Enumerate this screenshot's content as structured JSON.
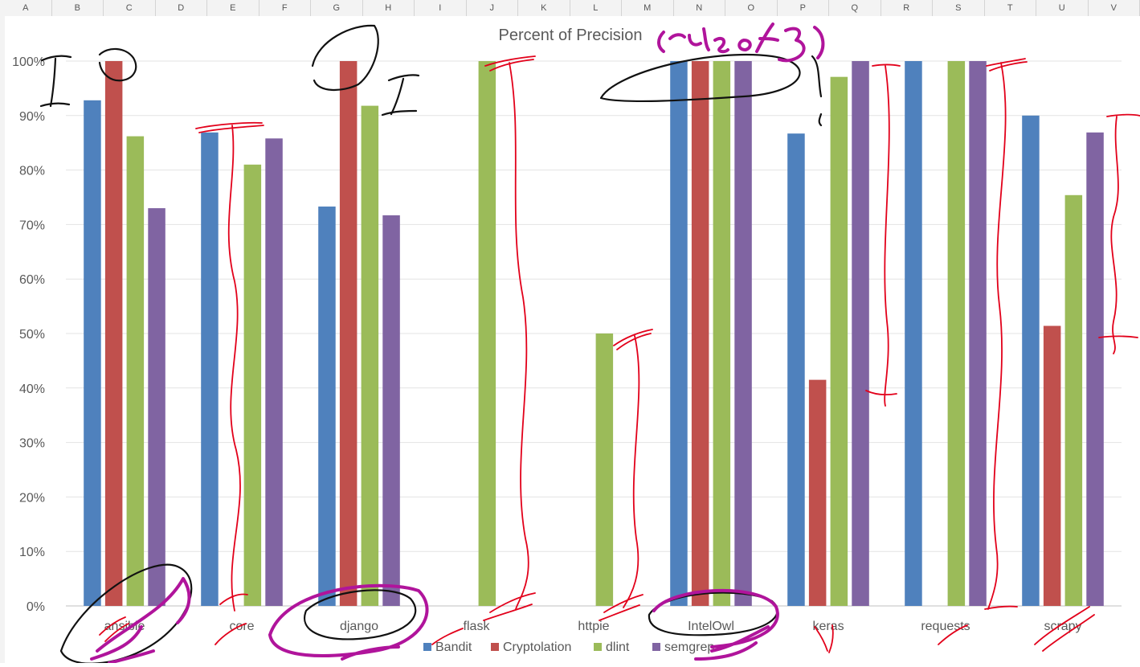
{
  "sheet": {
    "columns": [
      "A",
      "B",
      "C",
      "D",
      "E",
      "F",
      "G",
      "H",
      "I",
      "J",
      "K",
      "L",
      "M",
      "N",
      "O",
      "P",
      "Q",
      "R",
      "S",
      "T",
      "U",
      "V"
    ]
  },
  "chart_data": {
    "type": "bar",
    "title": "Percent of Precision",
    "categories": [
      "ansible",
      "core",
      "django",
      "flask",
      "httpie",
      "IntelOwl",
      "keras",
      "requests",
      "scrapy"
    ],
    "series": [
      {
        "name": "Bandit",
        "color": "#4F81BD",
        "values": [
          92.8,
          86.9,
          73.3,
          null,
          null,
          100,
          86.7,
          100,
          90
        ]
      },
      {
        "name": "Cryptolation",
        "color": "#C0504D",
        "values": [
          100,
          null,
          100,
          null,
          null,
          100,
          41.5,
          null,
          51.4
        ]
      },
      {
        "name": "dlint",
        "color": "#9BBB59",
        "values": [
          86.2,
          81.0,
          91.8,
          100,
          50,
          100,
          97.1,
          100,
          75.4
        ]
      },
      {
        "name": "semgrep",
        "color": "#8064A2",
        "values": [
          73.0,
          85.8,
          71.7,
          null,
          null,
          100,
          100,
          100,
          86.9
        ]
      }
    ],
    "ylim": [
      0,
      100
    ],
    "yticks": [
      "0%",
      "10%",
      "20%",
      "30%",
      "40%",
      "50%",
      "60%",
      "70%",
      "80%",
      "90%",
      "100%"
    ],
    "grid": true,
    "legend_position": "bottom",
    "annotation": "(rule of 3)",
    "annotation_color": "#B0149B",
    "ink_red": "#E2001A",
    "ink_black": "#111111"
  }
}
